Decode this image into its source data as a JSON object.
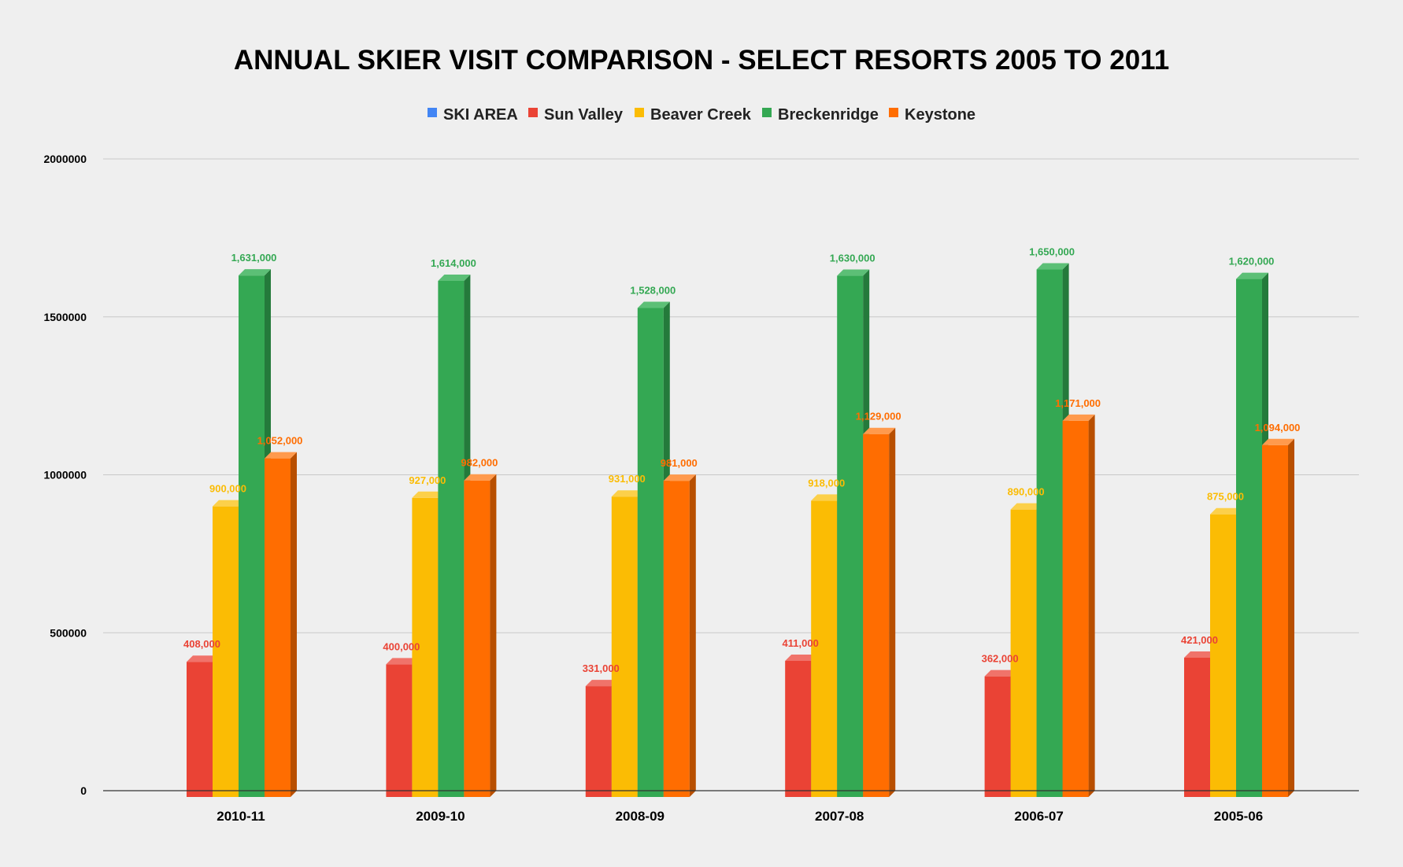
{
  "chart_data": {
    "type": "bar",
    "title": "ANNUAL SKIER VISIT COMPARISON - SELECT RESORTS 2005 TO 2011",
    "xlabel": "",
    "ylabel": "",
    "ylim": [
      0,
      2000000
    ],
    "yticks": [
      "0",
      "500000",
      "1000000",
      "1500000",
      "2000000"
    ],
    "ytick_values": [
      0,
      500000,
      1000000,
      1500000,
      2000000
    ],
    "grid": true,
    "legend_position": "top",
    "categories": [
      "2010-11",
      "2009-10",
      "2008-09",
      "2007-08",
      "2006-07",
      "2005-06"
    ],
    "legend": [
      {
        "name": "SKI AREA",
        "color": "#4285f4"
      },
      {
        "name": "Sun Valley",
        "color": "#ea4335"
      },
      {
        "name": "Beaver Creek",
        "color": "#fbbc04"
      },
      {
        "name": "Breckenridge",
        "color": "#34a853"
      },
      {
        "name": "Keystone",
        "color": "#ff6d01"
      }
    ],
    "series": [
      {
        "name": "Sun Valley",
        "color": "#ea4335",
        "side": "#b0302a",
        "top": "#f0736a",
        "values": [
          408000,
          400000,
          331000,
          411000,
          362000,
          421000
        ],
        "labels": [
          "408,000",
          "400,000",
          "331,000",
          "411,000",
          "362,000",
          "421,000"
        ]
      },
      {
        "name": "Beaver Creek",
        "color": "#fbbc04",
        "side": "#c08f00",
        "top": "#fcd04a",
        "values": [
          900000,
          927000,
          931000,
          918000,
          890000,
          875000
        ],
        "labels": [
          "900,000",
          "927,000",
          "931,000",
          "918,000",
          "890,000",
          "875,000"
        ]
      },
      {
        "name": "Breckenridge",
        "color": "#34a853",
        "side": "#247a3b",
        "top": "#5cbf76",
        "values": [
          1631000,
          1614000,
          1528000,
          1630000,
          1650000,
          1620000
        ],
        "labels": [
          "1,631,000",
          "1,614,000",
          "1,528,000",
          "1,630,000",
          "1,650,000",
          "1,620,000"
        ]
      },
      {
        "name": "Keystone",
        "color": "#ff6d01",
        "side": "#b84f00",
        "top": "#ff9a4d",
        "values": [
          1052000,
          982000,
          981000,
          1129000,
          1171000,
          1094000
        ],
        "labels": [
          "1,052,000",
          "982,000",
          "981,000",
          "1,129,000",
          "1,171,000",
          "1,094,000"
        ]
      }
    ]
  }
}
